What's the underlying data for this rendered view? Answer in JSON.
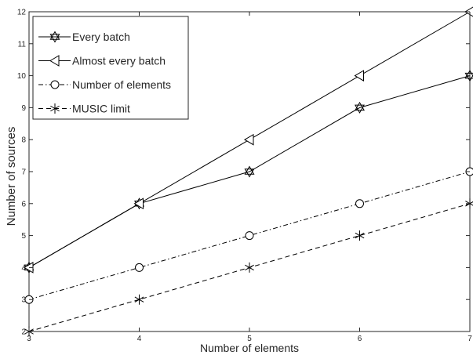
{
  "chart_data": {
    "type": "line",
    "title": "",
    "xlabel": "Number of elements",
    "ylabel": "Number of sources",
    "x": [
      3,
      4,
      5,
      6,
      7
    ],
    "xlim": [
      3,
      7
    ],
    "ylim": [
      2,
      12
    ],
    "xticks": [
      "3",
      "4",
      "5",
      "6",
      "7"
    ],
    "yticks": [
      "2",
      "3",
      "4",
      "5",
      "6",
      "7",
      "8",
      "9",
      "10",
      "11",
      "12"
    ],
    "grid": false,
    "legend_position": "top-left",
    "series": [
      {
        "name": "Every batch",
        "values": [
          4,
          6,
          7,
          9,
          10
        ],
        "marker": "hexagram",
        "linestyle": "solid"
      },
      {
        "name": "Almost every batch",
        "values": [
          4,
          6,
          8,
          10,
          12
        ],
        "marker": "triangle-left",
        "linestyle": "solid"
      },
      {
        "name": "Number of elements",
        "values": [
          3,
          4,
          5,
          6,
          7
        ],
        "marker": "circle",
        "linestyle": "dashdot"
      },
      {
        "name": "MUSIC limit",
        "values": [
          2,
          3,
          4,
          5,
          6
        ],
        "marker": "asterisk",
        "linestyle": "dashed"
      }
    ],
    "colors": {
      "line": "#000000",
      "axis": "#262626",
      "background": "#ffffff"
    }
  }
}
